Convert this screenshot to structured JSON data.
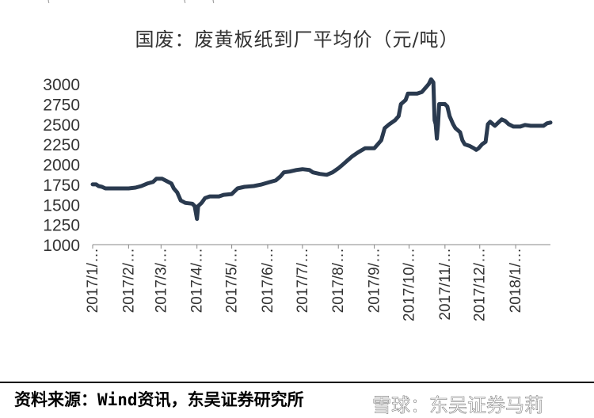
{
  "header_fragments": [
    "(",
    "(",
    "("
  ],
  "source_text": "资料来源：Wind资讯，东吴证券研究所",
  "watermark_text": "雪球：东吴证券马莉",
  "colors": {
    "line": "#2a3a4f",
    "text": "#333333",
    "axis": "#888888"
  },
  "chart_data": {
    "type": "line",
    "title": "国废：废黄板纸到厂平均价（元/吨）",
    "xlabel": "",
    "ylabel": "",
    "ylim": [
      1000,
      3100
    ],
    "yticks": [
      1000,
      1250,
      1500,
      1750,
      2000,
      2250,
      2500,
      2750,
      3000
    ],
    "xlim": [
      "2017-01-01",
      "2018-01-31"
    ],
    "xticks": [
      {
        "date": "2017-01-01",
        "label": "2017/1/…"
      },
      {
        "date": "2017-02-01",
        "label": "2017/2/…"
      },
      {
        "date": "2017-03-01",
        "label": "2017/3/…"
      },
      {
        "date": "2017-04-01",
        "label": "2017/4/…"
      },
      {
        "date": "2017-05-01",
        "label": "2017/5/…"
      },
      {
        "date": "2017-06-01",
        "label": "2017/6/…"
      },
      {
        "date": "2017-07-01",
        "label": "2017/7/…"
      },
      {
        "date": "2017-08-01",
        "label": "2017/8/…"
      },
      {
        "date": "2017-09-01",
        "label": "2017/9/…"
      },
      {
        "date": "2017-10-01",
        "label": "2017/10/…"
      },
      {
        "date": "2017-11-01",
        "label": "2017/11/…"
      },
      {
        "date": "2017-12-01",
        "label": "2017/12/…"
      },
      {
        "date": "2018-01-01",
        "label": "2018/1/…"
      }
    ],
    "grid": false,
    "series": [
      {
        "name": "",
        "points": [
          [
            "2017-01-01",
            1750
          ],
          [
            "2017-01-04",
            1750
          ],
          [
            "2017-01-06",
            1730
          ],
          [
            "2017-01-09",
            1720
          ],
          [
            "2017-01-12",
            1700
          ],
          [
            "2017-01-20",
            1700
          ],
          [
            "2017-02-01",
            1700
          ],
          [
            "2017-02-07",
            1710
          ],
          [
            "2017-02-12",
            1730
          ],
          [
            "2017-02-17",
            1760
          ],
          [
            "2017-02-22",
            1780
          ],
          [
            "2017-02-25",
            1820
          ],
          [
            "2017-03-02",
            1820
          ],
          [
            "2017-03-06",
            1790
          ],
          [
            "2017-03-10",
            1760
          ],
          [
            "2017-03-12",
            1700
          ],
          [
            "2017-03-15",
            1650
          ],
          [
            "2017-03-18",
            1550
          ],
          [
            "2017-03-22",
            1520
          ],
          [
            "2017-03-28",
            1510
          ],
          [
            "2017-03-30",
            1480
          ],
          [
            "2017-04-01",
            1320
          ],
          [
            "2017-04-02",
            1480
          ],
          [
            "2017-04-05",
            1520
          ],
          [
            "2017-04-08",
            1580
          ],
          [
            "2017-04-12",
            1600
          ],
          [
            "2017-04-20",
            1600
          ],
          [
            "2017-04-24",
            1620
          ],
          [
            "2017-05-01",
            1630
          ],
          [
            "2017-05-06",
            1700
          ],
          [
            "2017-05-12",
            1720
          ],
          [
            "2017-05-20",
            1730
          ],
          [
            "2017-05-27",
            1750
          ],
          [
            "2017-06-03",
            1780
          ],
          [
            "2017-06-08",
            1800
          ],
          [
            "2017-06-12",
            1850
          ],
          [
            "2017-06-15",
            1900
          ],
          [
            "2017-06-20",
            1910
          ],
          [
            "2017-06-26",
            1930
          ],
          [
            "2017-07-01",
            1940
          ],
          [
            "2017-07-07",
            1930
          ],
          [
            "2017-07-10",
            1900
          ],
          [
            "2017-07-16",
            1880
          ],
          [
            "2017-07-22",
            1870
          ],
          [
            "2017-07-27",
            1900
          ],
          [
            "2017-08-01",
            1950
          ],
          [
            "2017-08-05",
            2000
          ],
          [
            "2017-08-09",
            2050
          ],
          [
            "2017-08-13",
            2100
          ],
          [
            "2017-08-18",
            2150
          ],
          [
            "2017-08-24",
            2200
          ],
          [
            "2017-09-01",
            2200
          ],
          [
            "2017-09-04",
            2250
          ],
          [
            "2017-09-07",
            2300
          ],
          [
            "2017-09-10",
            2450
          ],
          [
            "2017-09-14",
            2500
          ],
          [
            "2017-09-19",
            2550
          ],
          [
            "2017-09-22",
            2600
          ],
          [
            "2017-09-24",
            2750
          ],
          [
            "2017-09-28",
            2800
          ],
          [
            "2017-09-30",
            2880
          ],
          [
            "2017-10-03",
            2880
          ],
          [
            "2017-10-08",
            2880
          ],
          [
            "2017-10-12",
            2900
          ],
          [
            "2017-10-15",
            2950
          ],
          [
            "2017-10-18",
            3000
          ],
          [
            "2017-10-20",
            3060
          ],
          [
            "2017-10-22",
            3020
          ],
          [
            "2017-10-23",
            2550
          ],
          [
            "2017-10-24",
            2500
          ],
          [
            "2017-10-25",
            2320
          ],
          [
            "2017-10-26",
            2500
          ],
          [
            "2017-10-27",
            2750
          ],
          [
            "2017-11-01",
            2750
          ],
          [
            "2017-11-03",
            2720
          ],
          [
            "2017-11-05",
            2600
          ],
          [
            "2017-11-08",
            2500
          ],
          [
            "2017-11-10",
            2450
          ],
          [
            "2017-11-14",
            2400
          ],
          [
            "2017-11-16",
            2300
          ],
          [
            "2017-11-18",
            2250
          ],
          [
            "2017-11-22",
            2230
          ],
          [
            "2017-11-26",
            2200
          ],
          [
            "2017-11-28",
            2180
          ],
          [
            "2017-11-30",
            2200
          ],
          [
            "2017-12-03",
            2250
          ],
          [
            "2017-12-06",
            2280
          ],
          [
            "2017-12-08",
            2500
          ],
          [
            "2017-12-10",
            2530
          ],
          [
            "2017-12-14",
            2480
          ],
          [
            "2017-12-17",
            2520
          ],
          [
            "2017-12-20",
            2560
          ],
          [
            "2017-12-23",
            2540
          ],
          [
            "2017-12-26",
            2500
          ],
          [
            "2017-12-30",
            2470
          ],
          [
            "2018-01-05",
            2470
          ],
          [
            "2018-01-09",
            2490
          ],
          [
            "2018-01-14",
            2480
          ],
          [
            "2018-01-20",
            2480
          ],
          [
            "2018-01-25",
            2480
          ],
          [
            "2018-01-28",
            2510
          ],
          [
            "2018-01-31",
            2520
          ]
        ]
      }
    ]
  }
}
